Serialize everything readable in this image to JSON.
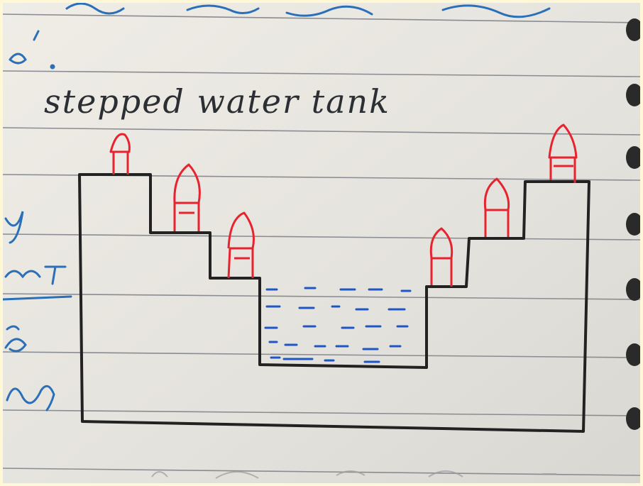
{
  "photo": {
    "heading": "stepped water tank",
    "top_scrawl": "mark ..... s... much",
    "top_fragment": "a'.",
    "margin_fragments": [
      "y",
      "m T",
      "is",
      "tion)"
    ],
    "bottom_scrawl": "S.... M.. T..... ... T..."
  },
  "colors": {
    "paper": "#e8e6e0",
    "rule_line": "#7c7e86",
    "tank_ink": "#222222",
    "pillar_ink": "#e8232f",
    "water_ink": "#1f56c4",
    "margin_ink": "#2a6fb8"
  }
}
